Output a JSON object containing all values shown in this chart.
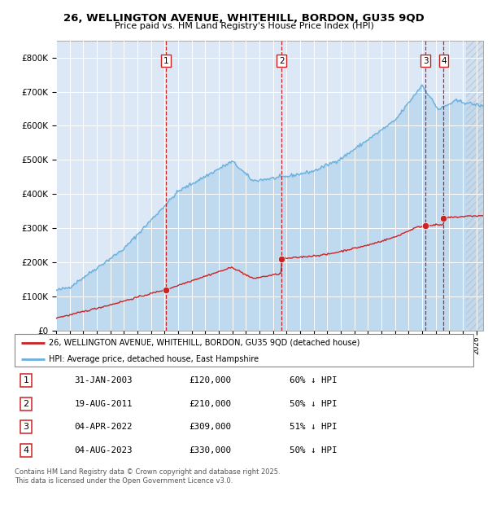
{
  "title_line1": "26, WELLINGTON AVENUE, WHITEHILL, BORDON, GU35 9QD",
  "title_line2": "Price paid vs. HM Land Registry's House Price Index (HPI)",
  "xlim_start": 1995.0,
  "xlim_end": 2026.5,
  "ylim": [
    0,
    850000
  ],
  "yticks": [
    0,
    100000,
    200000,
    300000,
    400000,
    500000,
    600000,
    700000,
    800000
  ],
  "ytick_labels": [
    "£0",
    "£100K",
    "£200K",
    "£300K",
    "£400K",
    "£500K",
    "£600K",
    "£700K",
    "£800K"
  ],
  "sale_dates": [
    2003.08,
    2011.63,
    2022.25,
    2023.59
  ],
  "sale_prices": [
    120000,
    210000,
    309000,
    330000
  ],
  "sale_labels": [
    "1",
    "2",
    "3",
    "4"
  ],
  "hpi_color": "#6ab0de",
  "sale_color": "#cc2222",
  "vline_color": "#cc0000",
  "plot_bg_color": "#dce8f5",
  "grid_color": "#ffffff",
  "legend_label_sale": "26, WELLINGTON AVENUE, WHITEHILL, BORDON, GU35 9QD (detached house)",
  "legend_label_hpi": "HPI: Average price, detached house, East Hampshire",
  "table_data": [
    [
      "1",
      "31-JAN-2003",
      "£120,000",
      "60% ↓ HPI"
    ],
    [
      "2",
      "19-AUG-2011",
      "£210,000",
      "50% ↓ HPI"
    ],
    [
      "3",
      "04-APR-2022",
      "£309,000",
      "51% ↓ HPI"
    ],
    [
      "4",
      "04-AUG-2023",
      "£330,000",
      "50% ↓ HPI"
    ]
  ],
  "footnote": "Contains HM Land Registry data © Crown copyright and database right 2025.\nThis data is licensed under the Open Government Licence v3.0.",
  "hatch_start": 2025.25
}
